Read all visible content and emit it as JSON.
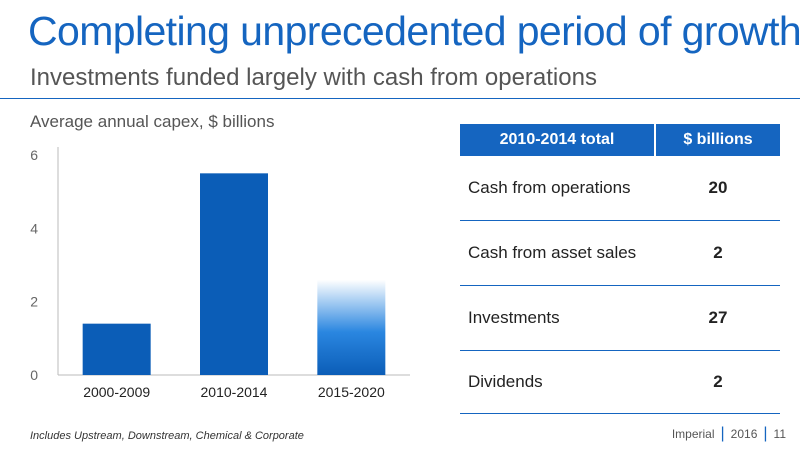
{
  "header": {
    "title": "Completing unprecedented period of growth",
    "subtitle": "Investments funded largely with cash from operations"
  },
  "chart_data": {
    "type": "bar",
    "ylabel": "Average annual capex, $ billions",
    "categories": [
      "2000-2009",
      "2010-2014",
      "2015-2020"
    ],
    "values": [
      1.4,
      5.5,
      2.6
    ],
    "ylim": [
      0,
      6
    ],
    "yticks": [
      "0",
      "2",
      "4",
      "6"
    ],
    "grid": false,
    "colors": [
      "#0b5db7",
      "#0b5db7",
      "#1a73d9"
    ],
    "last_bar_style": "gradient-fade"
  },
  "table": {
    "headers": [
      "2010-2014 total",
      "$ billions"
    ],
    "rows": [
      {
        "label": "Cash from operations",
        "value": "20"
      },
      {
        "label": "Cash from asset sales",
        "value": "2"
      },
      {
        "label": "Investments",
        "value": "27"
      },
      {
        "label": "Dividends",
        "value": "2"
      }
    ]
  },
  "footnote": "Includes Upstream, Downstream, Chemical & Corporate",
  "footer": {
    "company": "Imperial",
    "year": "2016",
    "page": "11"
  },
  "colors": {
    "accent": "#1565c0"
  }
}
